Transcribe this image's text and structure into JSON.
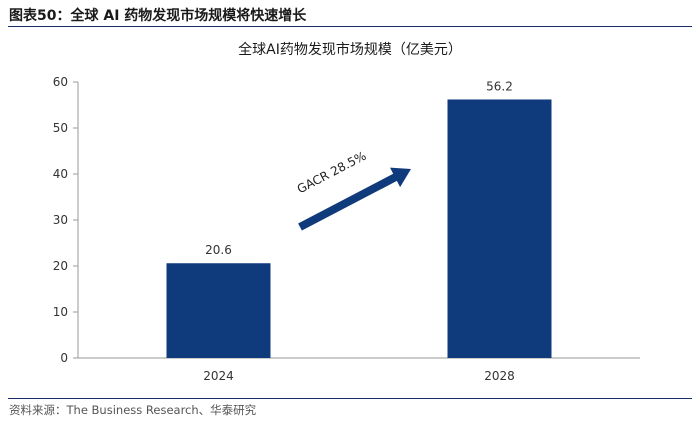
{
  "figure": {
    "label": "图表50：",
    "title": "全球 AI 药物发现市场规模将快速增长"
  },
  "source": "资料来源：The Business Research、华泰研究",
  "colors": {
    "bar": "#0f3a7c",
    "axis": "#999999",
    "header_rule": "#1b2f6b"
  },
  "chart_data": {
    "type": "bar",
    "title": "全球AI药物发现市场规模（亿美元）",
    "categories": [
      "2024",
      "2028"
    ],
    "values": [
      20.6,
      56.2
    ],
    "data_labels": [
      "20.6",
      "56.2"
    ],
    "xlabel": "",
    "ylabel": "",
    "ylim": [
      0,
      60
    ],
    "yticks": [
      0,
      10,
      20,
      30,
      40,
      50,
      60
    ],
    "grid": false,
    "annotation": {
      "text": "GACR 28.5%",
      "type": "arrow",
      "from": "2024",
      "to": "2028"
    }
  }
}
